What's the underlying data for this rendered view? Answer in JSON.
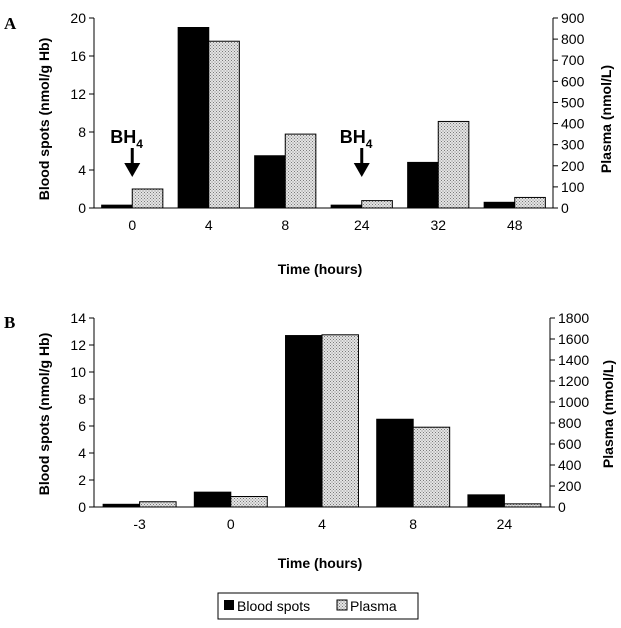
{
  "colors": {
    "blood_spots": "#000000",
    "plasma_fill": "#e4e4e4",
    "plasma_dot": "#7a7a7a",
    "axis": "#000000",
    "background": "#ffffff"
  },
  "chart_data": [
    {
      "type": "bar",
      "panel": "A",
      "categories": [
        "0",
        "4",
        "8",
        "24",
        "32",
        "48"
      ],
      "series": [
        {
          "name": "Blood spots",
          "axis": "left",
          "values": [
            0.3,
            19.0,
            5.5,
            0.3,
            4.8,
            0.6
          ]
        },
        {
          "name": "Plasma",
          "axis": "right",
          "values": [
            90,
            790,
            350,
            35,
            410,
            50
          ]
        }
      ],
      "xlabel": "Time (hours)",
      "ylabel": "Blood spots (nmol/g Hb)",
      "y2label": "Plasma (nmol/L)",
      "ylim": [
        0,
        20
      ],
      "y2lim": [
        0,
        900
      ],
      "yticks": [
        "0",
        "4",
        "8",
        "12",
        "16",
        "20"
      ],
      "y2ticks": [
        "0",
        "100",
        "200",
        "300",
        "400",
        "500",
        "600",
        "700",
        "800",
        "900"
      ],
      "annotations": [
        {
          "text": "BH",
          "subscript": "4",
          "category": "0"
        },
        {
          "text": "BH",
          "subscript": "4",
          "category": "24"
        }
      ],
      "grid": false
    },
    {
      "type": "bar",
      "panel": "B",
      "categories": [
        "-3",
        "0",
        "4",
        "8",
        "24"
      ],
      "series": [
        {
          "name": "Blood spots",
          "axis": "left",
          "values": [
            0.2,
            1.1,
            12.7,
            6.5,
            0.9
          ]
        },
        {
          "name": "Plasma",
          "axis": "right",
          "values": [
            50,
            100,
            1640,
            760,
            30
          ]
        }
      ],
      "xlabel": "Time (hours)",
      "ylabel": "Blood spots (nmol/g Hb)",
      "y2label": "Plasma (nmol/L)",
      "ylim": [
        0,
        14
      ],
      "y2lim": [
        0,
        1800
      ],
      "yticks": [
        "0",
        "2",
        "4",
        "6",
        "8",
        "10",
        "12",
        "14"
      ],
      "y2ticks": [
        "0",
        "200",
        "400",
        "600",
        "800",
        "1000",
        "1200",
        "1400",
        "1600",
        "1800"
      ],
      "grid": false
    }
  ],
  "legend": {
    "placement": "bottom-center",
    "items": [
      "Blood spots",
      "Plasma"
    ]
  }
}
